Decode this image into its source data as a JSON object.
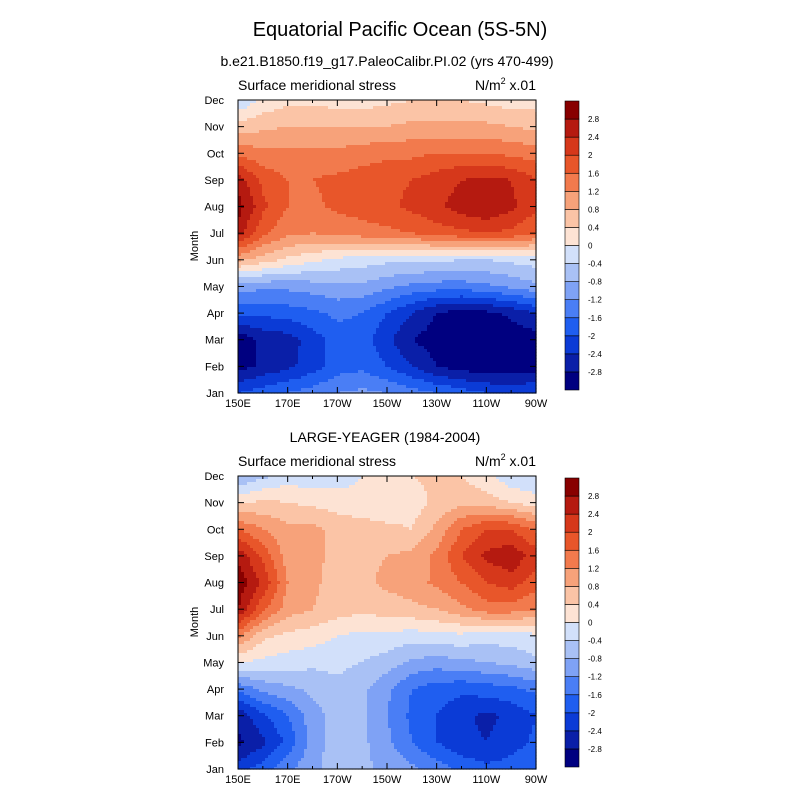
{
  "figure": {
    "title": "Equatorial Pacific Ocean (5S-5N)"
  },
  "colorscale": {
    "levels": [
      -2.8,
      -2.4,
      -2,
      -1.6,
      -1.2,
      -0.8,
      -0.4,
      0,
      0.4,
      0.8,
      1.2,
      1.6,
      2,
      2.4,
      2.8
    ],
    "labels": [
      "-2.8",
      "-2.4",
      "-2",
      "-1.6",
      "-1.2",
      "-0.8",
      "-0.4",
      "0",
      "0.4",
      "0.8",
      "1.2",
      "1.6",
      "2",
      "2.4",
      "2.8"
    ],
    "colors": [
      "#000080",
      "#0a1fa8",
      "#0b3bd6",
      "#1f5ef0",
      "#4a7ef5",
      "#7fa2f5",
      "#a9c1f5",
      "#d2e0fa",
      "#fde3d4",
      "#fbc4a6",
      "#f7a27a",
      "#f27a4d",
      "#e8562a",
      "#d6381b",
      "#b51a10",
      "#880000"
    ]
  },
  "chart_data": [
    {
      "type": "heatmap",
      "title": "b.e21.B1850.f19_g17.PaleoCalibr.PI.02 (yrs 470-499)",
      "left_label": "Surface meridional stress",
      "units_label": "N/m",
      "units_sup": "2",
      "units_suffix": " x.01",
      "ylabel": "Month",
      "xlim": [
        150,
        270
      ],
      "x_ticks": [
        "150E",
        "170E",
        "170W",
        "150W",
        "130W",
        "110W",
        "90W"
      ],
      "y_ticks": [
        "Jan",
        "Feb",
        "Mar",
        "Apr",
        "May",
        "Jun",
        "Jul",
        "Aug",
        "Sep",
        "Oct",
        "Nov",
        "Dec"
      ],
      "x": [
        150,
        160,
        170,
        180,
        190,
        200,
        210,
        220,
        230,
        240,
        250,
        260,
        270
      ],
      "values": [
        [
          -2.0,
          -1.8,
          -1.6,
          -1.4,
          -1.2,
          -1.1,
          -1.2,
          -1.4,
          -1.6,
          -1.8,
          -2.0,
          -2.1,
          -2.0
        ],
        [
          -3.0,
          -2.7,
          -2.5,
          -2.2,
          -1.8,
          -1.7,
          -2.0,
          -2.4,
          -2.8,
          -3.0,
          -3.1,
          -3.1,
          -3.0
        ],
        [
          -3.1,
          -2.7,
          -2.6,
          -2.2,
          -1.8,
          -1.8,
          -2.3,
          -2.8,
          -3.0,
          -3.1,
          -3.2,
          -3.1,
          -3.0
        ],
        [
          -1.9,
          -1.9,
          -1.8,
          -1.7,
          -1.5,
          -1.6,
          -2.0,
          -2.4,
          -2.8,
          -3.0,
          -2.9,
          -2.7,
          -2.4
        ],
        [
          -1.0,
          -1.1,
          -1.1,
          -1.0,
          -0.9,
          -0.9,
          -1.1,
          -1.3,
          -1.4,
          -1.4,
          -1.3,
          -1.1,
          -0.9
        ],
        [
          0.9,
          0.6,
          0.3,
          0.1,
          -0.1,
          -0.2,
          -0.3,
          -0.3,
          -0.3,
          -0.4,
          -0.4,
          -0.3,
          -0.2
        ],
        [
          2.6,
          1.7,
          1.3,
          1.2,
          1.3,
          1.4,
          1.5,
          1.6,
          1.8,
          1.9,
          2.0,
          1.9,
          1.6
        ],
        [
          3.0,
          2.1,
          1.6,
          1.5,
          1.7,
          1.8,
          1.9,
          2.1,
          2.3,
          2.6,
          2.8,
          2.5,
          2.1
        ],
        [
          2.6,
          1.9,
          1.6,
          1.6,
          1.7,
          1.8,
          1.9,
          2.0,
          2.2,
          2.4,
          2.5,
          2.4,
          2.0
        ],
        [
          1.5,
          1.3,
          1.3,
          1.3,
          1.3,
          1.4,
          1.5,
          1.5,
          1.6,
          1.6,
          1.6,
          1.5,
          1.4
        ],
        [
          0.6,
          0.7,
          0.8,
          0.8,
          0.8,
          0.8,
          0.8,
          0.9,
          0.9,
          0.9,
          0.9,
          0.8,
          0.7
        ],
        [
          -0.4,
          0.1,
          0.3,
          0.3,
          0.2,
          0.2,
          0.3,
          0.4,
          0.4,
          0.4,
          0.3,
          0.2,
          0.2
        ]
      ]
    },
    {
      "type": "heatmap",
      "title": "LARGE-YEAGER (1984-2004)",
      "left_label": "Surface meridional stress",
      "units_label": "N/m",
      "units_sup": "2",
      "units_suffix": " x.01",
      "ylabel": "Month",
      "xlim": [
        150,
        270
      ],
      "x_ticks": [
        "150E",
        "170E",
        "170W",
        "150W",
        "130W",
        "110W",
        "90W"
      ],
      "y_ticks": [
        "Jan",
        "Feb",
        "Mar",
        "Apr",
        "May",
        "Jun",
        "Jul",
        "Aug",
        "Sep",
        "Oct",
        "Nov",
        "Dec"
      ],
      "x": [
        150,
        160,
        170,
        180,
        190,
        200,
        210,
        220,
        230,
        240,
        250,
        260,
        270
      ],
      "values": [
        [
          -2.2,
          -1.8,
          -1.3,
          -0.9,
          -0.6,
          -0.7,
          -0.9,
          -1.1,
          -1.4,
          -1.7,
          -1.9,
          -1.8,
          -1.6
        ],
        [
          -2.9,
          -2.5,
          -1.9,
          -1.0,
          -0.6,
          -0.7,
          -1.1,
          -1.6,
          -2.0,
          -2.3,
          -2.4,
          -2.2,
          -1.9
        ],
        [
          -2.7,
          -2.1,
          -1.6,
          -1.0,
          -0.6,
          -0.7,
          -1.2,
          -1.7,
          -2.0,
          -2.3,
          -2.5,
          -2.3,
          -2.0
        ],
        [
          -1.5,
          -1.1,
          -0.9,
          -0.7,
          -0.5,
          -0.7,
          -1.1,
          -1.6,
          -1.8,
          -1.9,
          -1.8,
          -1.7,
          -1.5
        ],
        [
          0.0,
          -0.1,
          -0.2,
          -0.3,
          -0.3,
          -0.4,
          -0.6,
          -0.9,
          -1.0,
          -0.9,
          -0.8,
          -0.7,
          -0.5
        ],
        [
          1.3,
          0.5,
          0.3,
          0.2,
          0.0,
          -0.1,
          -0.1,
          -0.2,
          -0.1,
          -0.1,
          -0.2,
          -0.2,
          -0.1
        ],
        [
          2.8,
          1.7,
          1.0,
          0.8,
          0.6,
          0.5,
          0.6,
          0.7,
          0.8,
          1.1,
          1.4,
          1.4,
          1.2
        ],
        [
          3.1,
          2.3,
          1.2,
          0.9,
          0.6,
          0.7,
          0.9,
          1.0,
          1.3,
          1.6,
          2.0,
          2.2,
          1.8
        ],
        [
          2.7,
          1.9,
          1.0,
          0.9,
          0.7,
          0.7,
          0.8,
          0.9,
          1.3,
          2.0,
          2.5,
          2.7,
          2.2
        ],
        [
          1.6,
          1.2,
          0.9,
          0.9,
          0.7,
          0.6,
          0.5,
          0.4,
          0.9,
          1.6,
          2.0,
          2.0,
          1.5
        ],
        [
          0.3,
          0.5,
          0.4,
          0.3,
          0.2,
          0.1,
          0.1,
          0.2,
          0.5,
          0.7,
          0.6,
          0.4,
          0.2
        ],
        [
          -0.8,
          -0.5,
          -0.2,
          -0.3,
          -0.2,
          0.0,
          0.2,
          0.4,
          0.5,
          0.4,
          0.1,
          -0.3,
          -0.4
        ]
      ]
    }
  ]
}
